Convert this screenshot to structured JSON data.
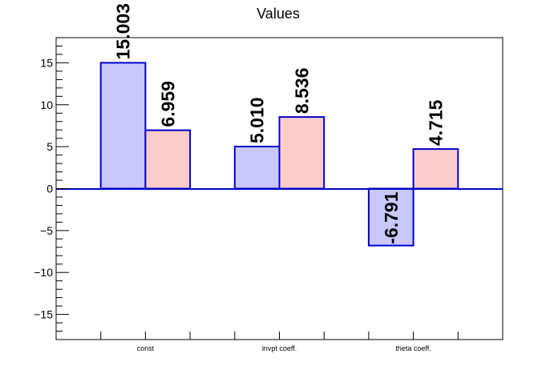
{
  "chart_data": {
    "type": "bar",
    "title": "Values",
    "categories": [
      "const",
      "invpt coeff.",
      "theta coeff."
    ],
    "series": [
      {
        "values": [
          15.003,
          5.01,
          -6.791
        ],
        "color": "#c8c8ff",
        "edge_color": "#0000cc"
      },
      {
        "values": [
          6.959,
          8.536,
          4.715
        ],
        "color": "#ffcccc",
        "edge_color": "#0000cc"
      }
    ],
    "data_labels": [
      [
        "15.003",
        "5.010",
        "-6.791"
      ],
      [
        "6.959",
        "8.536",
        "4.715"
      ]
    ],
    "ylim": [
      -18,
      18
    ],
    "yticks": [
      -15,
      -10,
      -5,
      0,
      5,
      10,
      15
    ],
    "ytick_labels": [
      "−15",
      "−10",
      "−5",
      "0",
      "5",
      "10",
      "15"
    ],
    "xlabel": "",
    "ylabel": "",
    "grid": false,
    "zero_line": true
  }
}
